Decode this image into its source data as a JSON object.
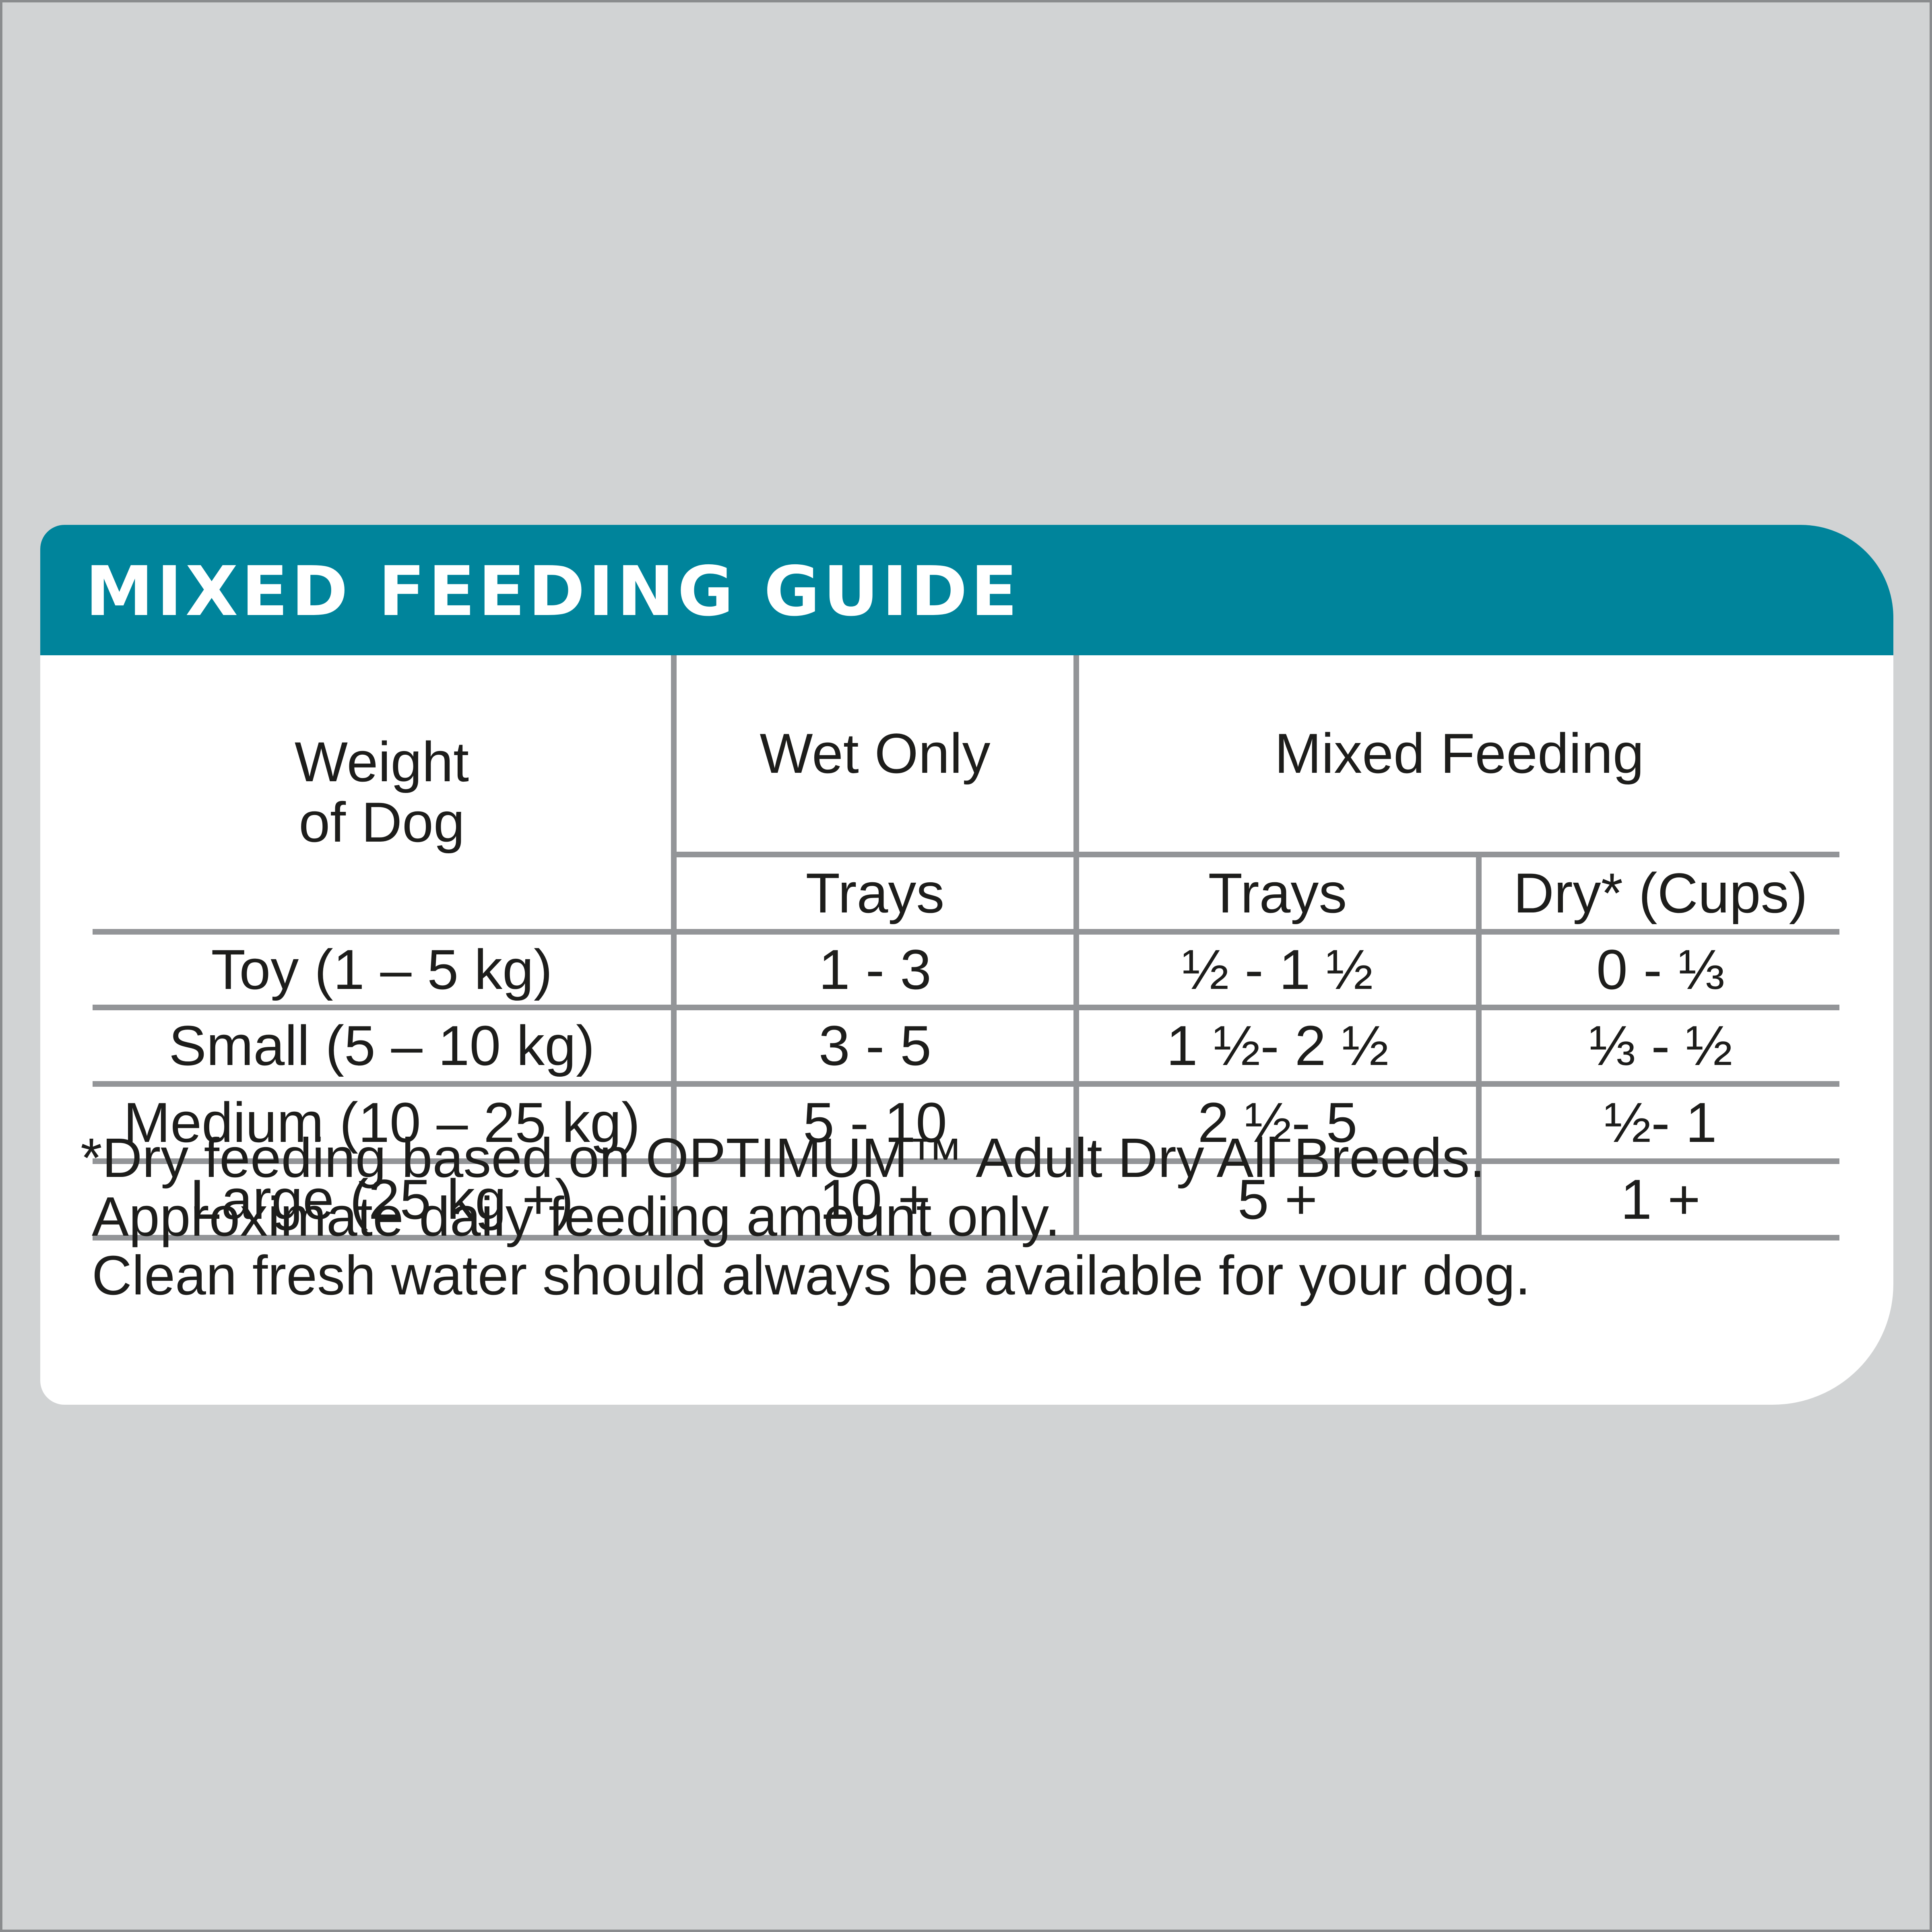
{
  "colors": {
    "background": "#d1d3d4",
    "header": "#00849b",
    "card": "#ffffff",
    "grid": "#939598",
    "text": "#1d1d1b"
  },
  "guide": {
    "title": "MIXED FEEDING GUIDE",
    "headers": {
      "weight_line1": "Weight",
      "weight_line2": "of Dog",
      "wet_only": "Wet Only",
      "mixed_feeding": "Mixed Feeding",
      "wet_trays": "Trays",
      "mixed_trays": "Trays",
      "dry_cups": "Dry* (Cups)"
    },
    "rows": [
      {
        "weight": "Toy (1 – 5 kg)",
        "wet_trays": "1 - 3",
        "mixed_trays": "½ - 1 ½",
        "dry_cups": "0 - ⅓"
      },
      {
        "weight": "Small (5 – 10 kg)",
        "wet_trays": "3 - 5",
        "mixed_trays": "1 ½- 2 ½",
        "dry_cups": "⅓ - ½"
      },
      {
        "weight": "Medium (10 – 25 kg)",
        "wet_trays": "5 - 10",
        "mixed_trays": "2 ½- 5",
        "dry_cups": "½- 1"
      },
      {
        "weight": "Large (25 kg +)",
        "wet_trays": "10 +",
        "mixed_trays": "5 +",
        "dry_cups": "1 +"
      }
    ],
    "notes": [
      "*Dry feeding based on OPTIMUM™ Adult Dry All Breeds.",
      "Approximate daily feeding amount only.",
      "Clean fresh water should always be available for your dog."
    ]
  }
}
